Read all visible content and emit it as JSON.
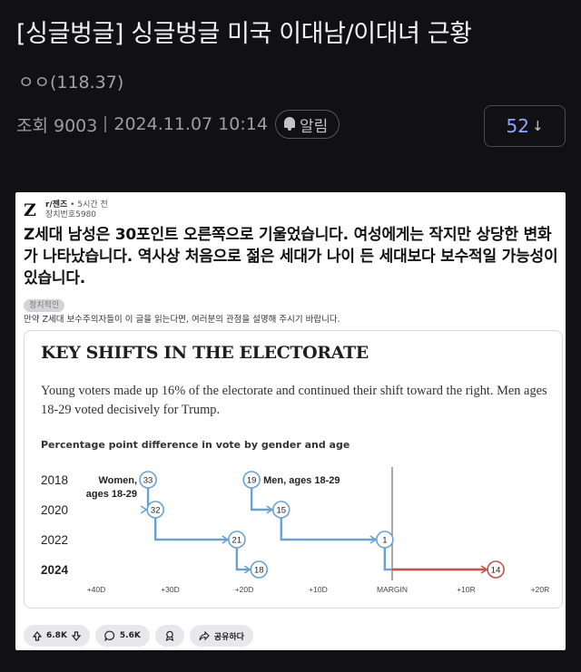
{
  "post": {
    "title": "[싱글벙글] 싱글벙글 미국 이대남/이대녀 근황",
    "author": "ㅇㅇ(118.37)",
    "views_label": "조회 9003",
    "timestamp": "2024.11.07 10:14",
    "alarm_label": "알림",
    "comment_count": "52",
    "comment_arrow": "↓"
  },
  "embed": {
    "logo": "Z",
    "community": "r/젠즈",
    "time_ago": "• 5시간 전",
    "user": "장치번호5980",
    "body": "Z세대 남성은 30포인트 오른쪽으로 기울었습니다. 여성에게는 작지만 상당한 변화가 나타났습니다. 역사상 처음으로 젊은 세대가 나이 든 세대보다 보수적일 가능성이 있습니다.",
    "flair": "정치적인",
    "flair_note": "만약 Z세대 보수주의자들이 이 글을 읽는다면, 여러분의 관점을 설명해 주시기 바랍니다.",
    "actions": {
      "upvotes": "6.8K",
      "comments": "5.6K",
      "share": "공유하다"
    }
  },
  "chart_data": {
    "type": "line",
    "title": "KEY SHIFTS IN THE ELECTORATE",
    "subtitle": "Young voters made up 16% of the electorate and continued their shift toward the right. Men ages 18-29 voted decisively for Trump.",
    "ylabel": "Percentage point difference in vote by gender and age",
    "y_categories": [
      "2018",
      "2020",
      "2022",
      "2024"
    ],
    "x_ticks": [
      "+40D",
      "+30D",
      "+20D",
      "+10D",
      "MARGIN",
      "+10R",
      "+20R"
    ],
    "x_range": [
      -45,
      22
    ],
    "series": [
      {
        "name": "Women, ages 18-29",
        "color": "#6aa2cf",
        "points": [
          {
            "year": "2018",
            "margin": -33,
            "label": "33"
          },
          {
            "year": "2020",
            "margin": -32,
            "label": "32"
          },
          {
            "year": "2022",
            "margin": -21,
            "label": "21"
          },
          {
            "year": "2024",
            "margin": -18,
            "label": "18"
          }
        ]
      },
      {
        "name": "Men, ages 18-29",
        "color": "#6aa2cf",
        "right_color": "#c6544a",
        "points": [
          {
            "year": "2018",
            "margin": -19,
            "label": "19"
          },
          {
            "year": "2020",
            "margin": -15,
            "label": "15"
          },
          {
            "year": "2022",
            "margin": -1,
            "label": "1"
          },
          {
            "year": "2024",
            "margin": 14,
            "label": "14"
          }
        ]
      }
    ],
    "annotations": [
      {
        "text_lines": [
          "Women,",
          "ages 18-29"
        ],
        "series": 0
      },
      {
        "text_lines": [
          "Men, ages 18-29"
        ],
        "series": 1
      }
    ]
  }
}
